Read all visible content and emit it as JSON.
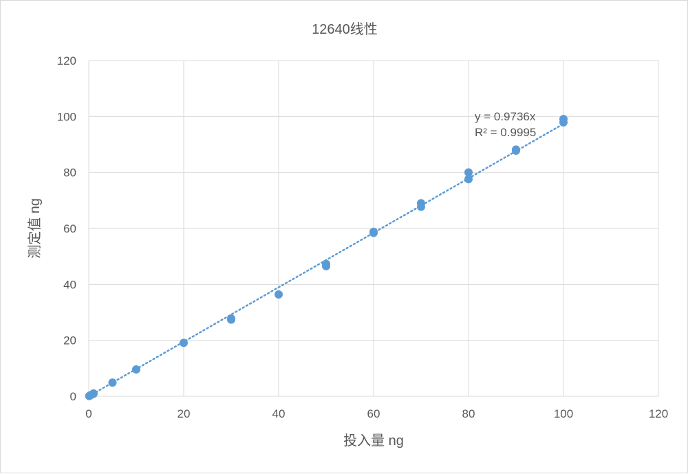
{
  "chart_data": {
    "type": "scatter",
    "title": "12640线性",
    "xlabel": "投入量 ng",
    "ylabel": "测定值 ng",
    "xlim": [
      0,
      120
    ],
    "ylim": [
      0,
      120
    ],
    "xticks": [
      0,
      20,
      40,
      60,
      80,
      100,
      120
    ],
    "yticks": [
      0,
      20,
      40,
      60,
      80,
      100,
      120
    ],
    "grid": true,
    "point_color": "#5b9bd5",
    "trendline": {
      "type": "linear",
      "slope": 0.9736,
      "intercept": 0,
      "x_range": [
        0,
        100
      ],
      "style": "dotted",
      "color": "#5b9bd5",
      "equation": "y = 0.9736x",
      "r_squared": "R² = 0.9995"
    },
    "points": [
      {
        "x": 0.1,
        "y": 0.1
      },
      {
        "x": 0.2,
        "y": 0.2
      },
      {
        "x": 0.5,
        "y": 0.5
      },
      {
        "x": 1,
        "y": 1.0
      },
      {
        "x": 1,
        "y": 0.9
      },
      {
        "x": 5,
        "y": 4.9
      },
      {
        "x": 10,
        "y": 9.6
      },
      {
        "x": 20,
        "y": 19.1
      },
      {
        "x": 30,
        "y": 27.8
      },
      {
        "x": 30,
        "y": 27.4
      },
      {
        "x": 40,
        "y": 36.4
      },
      {
        "x": 50,
        "y": 47.3
      },
      {
        "x": 50,
        "y": 46.5
      },
      {
        "x": 60,
        "y": 58.8
      },
      {
        "x": 60,
        "y": 58.4
      },
      {
        "x": 70,
        "y": 69.0
      },
      {
        "x": 70,
        "y": 67.7
      },
      {
        "x": 80,
        "y": 80.0
      },
      {
        "x": 80,
        "y": 77.6
      },
      {
        "x": 90,
        "y": 88.2
      },
      {
        "x": 90,
        "y": 87.8
      },
      {
        "x": 100,
        "y": 99.1
      },
      {
        "x": 100,
        "y": 97.9
      }
    ]
  }
}
